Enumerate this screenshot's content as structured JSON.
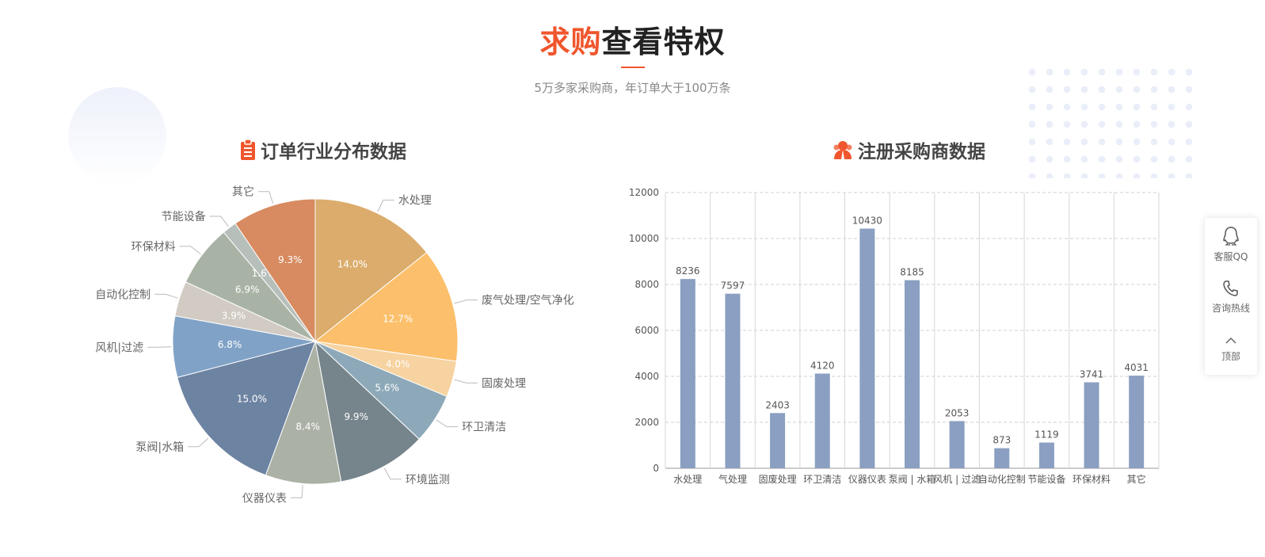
{
  "header": {
    "title_highlight": "求购",
    "title_rest": "查看特权",
    "subtitle": "5万多家采购商，年订单大于100万条"
  },
  "colors": {
    "accent": "#f0562d",
    "bar": "#8a9fc1"
  },
  "sidebar": {
    "items": [
      {
        "label": "客服QQ",
        "icon": "qq-icon"
      },
      {
        "label": "咨询热线",
        "icon": "phone-icon"
      },
      {
        "label": "顶部",
        "icon": "chevron-up-icon"
      }
    ]
  },
  "chart_data": [
    {
      "type": "pie",
      "title": "订单行业分布数据",
      "icon": "clipboard-icon",
      "slices": [
        {
          "name": "水处理",
          "value": 14.0,
          "label": "14.0%",
          "color": "#dbac6c"
        },
        {
          "name": "废气处理/空气净化",
          "value": 12.7,
          "label": "12.7%",
          "color": "#fcbf6b"
        },
        {
          "name": "固废处理",
          "value": 4.0,
          "label": "4.0%",
          "color": "#f6d3a0"
        },
        {
          "name": "环卫清洁",
          "value": 5.6,
          "label": "5.6%",
          "color": "#8da9b9"
        },
        {
          "name": "环境监测",
          "value": 9.9,
          "label": "9.9%",
          "color": "#76858c"
        },
        {
          "name": "仪器仪表",
          "value": 8.4,
          "label": "8.4%",
          "color": "#abb1a5"
        },
        {
          "name": "泵阀|水箱",
          "value": 15.0,
          "label": "15.0%",
          "color": "#6d83a2"
        },
        {
          "name": "风机|过滤",
          "value": 6.8,
          "label": "6.8%",
          "color": "#80a2c7"
        },
        {
          "name": "自动化控制",
          "value": 3.9,
          "label": "3.9%",
          "color": "#d1cbc3"
        },
        {
          "name": "环保材料",
          "value": 6.9,
          "label": "6.9%",
          "color": "#a9b3a5"
        },
        {
          "name": "节能设备",
          "value": 1.6,
          "label": "1.6%",
          "color": "#b7bfbb"
        },
        {
          "name": "其它",
          "value": 9.3,
          "label": "9.3%",
          "color": "#d88b60"
        }
      ]
    },
    {
      "type": "bar",
      "title": "注册采购商数据",
      "icon": "users-icon",
      "categories": [
        "水处理",
        "气处理",
        "固废处理",
        "环卫清洁",
        "仪器仪表",
        "泵阀 | 水箱",
        "风机 | 过滤",
        "自动化控制",
        "节能设备",
        "环保材料",
        "其它"
      ],
      "values": [
        8236,
        7597,
        2403,
        4120,
        10430,
        8185,
        2053,
        873,
        1119,
        3741,
        4031
      ],
      "ylim": [
        0,
        12000
      ],
      "yticks": [
        0,
        2000,
        4000,
        6000,
        8000,
        10000,
        12000
      ],
      "grid": true
    }
  ]
}
